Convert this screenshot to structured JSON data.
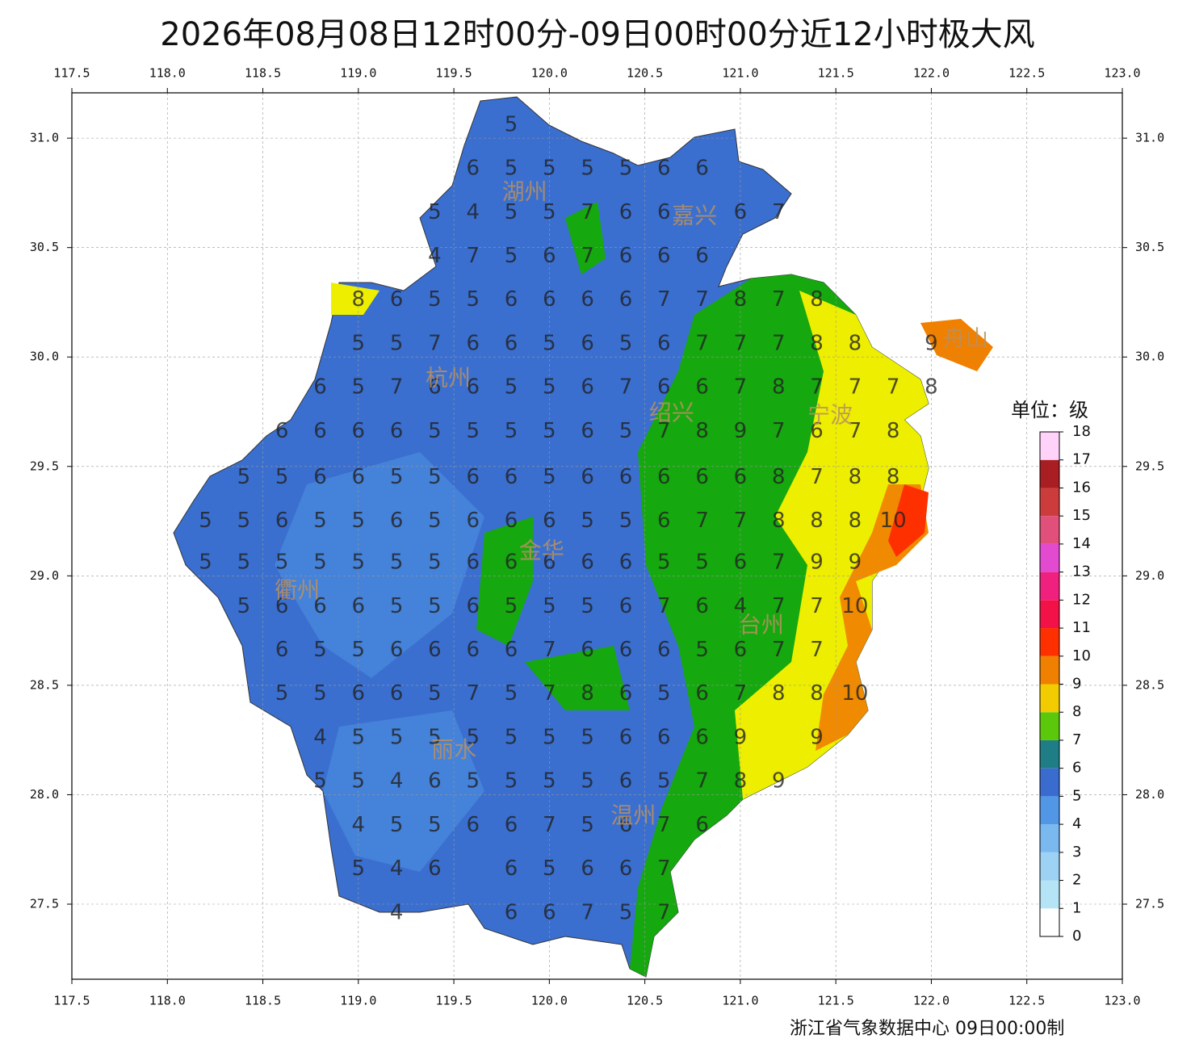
{
  "title": "2026年08月08日12时00分-09日00时00分近12小时极大风",
  "footer": "浙江省气象数据中心 09日00:00制",
  "map": {
    "xlim": [
      117.5,
      123.0
    ],
    "ylim": [
      27.157,
      31.207
    ],
    "grid": true,
    "xticks": [
      {
        "value": 117.5,
        "label": "117.5"
      },
      {
        "value": 118,
        "label": "118.0"
      },
      {
        "value": 118.5,
        "label": "118.5"
      },
      {
        "value": 119,
        "label": "119.0"
      },
      {
        "value": 119.5,
        "label": "119.5"
      },
      {
        "value": 120,
        "label": "120.0"
      },
      {
        "value": 120.5,
        "label": "120.5"
      },
      {
        "value": 121,
        "label": "121.0"
      },
      {
        "value": 121.5,
        "label": "121.5"
      },
      {
        "value": 122,
        "label": "122.0"
      },
      {
        "value": 122.5,
        "label": "122.5"
      },
      {
        "value": 123,
        "label": "123.0"
      }
    ],
    "yticks": [
      {
        "value": 27.5,
        "label": "27.5"
      },
      {
        "value": 28,
        "label": "28.0"
      },
      {
        "value": 28.5,
        "label": "28.5"
      },
      {
        "value": 29,
        "label": "29.0"
      },
      {
        "value": 29.5,
        "label": "29.5"
      },
      {
        "value": 30,
        "label": "30.0"
      },
      {
        "value": 30.5,
        "label": "30.5"
      },
      {
        "value": 31,
        "label": "31.0"
      }
    ]
  },
  "cities": [
    {
      "name": "湖州",
      "lon": 119.87,
      "lat": 30.75
    },
    {
      "name": "嘉兴",
      "lon": 120.76,
      "lat": 30.64
    },
    {
      "name": "杭州",
      "lon": 119.47,
      "lat": 29.9
    },
    {
      "name": "绍兴",
      "lon": 120.64,
      "lat": 29.74
    },
    {
      "name": "宁波",
      "lon": 121.47,
      "lat": 29.73
    },
    {
      "name": "舟山",
      "lon": 122.18,
      "lat": 30.08
    },
    {
      "name": "金华",
      "lon": 119.96,
      "lat": 29.11
    },
    {
      "name": "衢州",
      "lon": 118.68,
      "lat": 28.93
    },
    {
      "name": "台州",
      "lon": 121.11,
      "lat": 28.77
    },
    {
      "name": "丽水",
      "lon": 119.5,
      "lat": 28.2
    },
    {
      "name": "温州",
      "lon": 120.44,
      "lat": 27.9
    }
  ],
  "station_rows": [
    {
      "lat": 31.06,
      "lon": [
        119.8
      ],
      "values": [
        5
      ]
    },
    {
      "lat": 30.86,
      "lon": [
        119.6,
        119.8,
        120.0,
        120.2,
        120.4,
        120.6,
        120.8
      ],
      "values": [
        6,
        5,
        5,
        5,
        5,
        6,
        6
      ]
    },
    {
      "lat": 30.66,
      "lon": [
        119.4,
        119.6,
        119.8,
        120.0,
        120.2,
        120.4,
        120.6,
        121.0,
        121.2
      ],
      "values": [
        5,
        4,
        5,
        5,
        7,
        6,
        6,
        6,
        7
      ]
    },
    {
      "lat": 30.46,
      "lon": [
        119.4,
        119.6,
        119.8,
        120.0,
        120.2,
        120.4,
        120.6,
        120.8
      ],
      "values": [
        4,
        7,
        5,
        6,
        7,
        6,
        6,
        6
      ]
    },
    {
      "lat": 30.26,
      "lon": [
        119.0,
        119.2,
        119.4,
        119.6,
        119.8,
        120.0,
        120.2,
        120.4,
        120.6,
        120.8,
        121.0,
        121.2,
        121.4
      ],
      "values": [
        8,
        6,
        5,
        5,
        6,
        6,
        6,
        6,
        7,
        7,
        8,
        7,
        8
      ]
    },
    {
      "lat": 30.06,
      "lon": [
        119.0,
        119.2,
        119.4,
        119.6,
        119.8,
        120.0,
        120.2,
        120.4,
        120.6,
        120.8,
        121.0,
        121.2,
        121.4,
        121.6,
        122.0
      ],
      "values": [
        5,
        5,
        7,
        6,
        6,
        5,
        6,
        5,
        6,
        7,
        7,
        7,
        8,
        8,
        9
      ]
    },
    {
      "lat": 29.86,
      "lon": [
        118.8,
        119.0,
        119.2,
        119.4,
        119.6,
        119.8,
        120.0,
        120.2,
        120.4,
        120.6,
        120.8,
        121.0,
        121.2,
        121.4,
        121.6,
        121.8,
        122.0
      ],
      "values": [
        6,
        5,
        7,
        6,
        6,
        5,
        5,
        6,
        7,
        6,
        6,
        7,
        8,
        7,
        7,
        7,
        8
      ]
    },
    {
      "lat": 29.66,
      "lon": [
        118.6,
        118.8,
        119.0,
        119.2,
        119.4,
        119.6,
        119.8,
        120.0,
        120.2,
        120.4,
        120.6,
        120.8,
        121.0,
        121.2,
        121.4,
        121.6,
        121.8
      ],
      "values": [
        6,
        6,
        6,
        6,
        5,
        5,
        5,
        5,
        6,
        5,
        7,
        8,
        9,
        7,
        6,
        7,
        8
      ]
    },
    {
      "lat": 29.45,
      "lon": [
        118.4,
        118.6,
        118.8,
        119.0,
        119.2,
        119.4,
        119.6,
        119.8,
        120.0,
        120.2,
        120.4,
        120.6,
        120.8,
        121.0,
        121.2,
        121.4,
        121.6,
        121.8
      ],
      "values": [
        5,
        5,
        6,
        6,
        5,
        5,
        6,
        6,
        5,
        6,
        6,
        6,
        6,
        6,
        8,
        7,
        8,
        8
      ]
    },
    {
      "lat": 29.25,
      "lon": [
        118.2,
        118.4,
        118.6,
        118.8,
        119.0,
        119.2,
        119.4,
        119.6,
        119.8,
        120.0,
        120.2,
        120.4,
        120.6,
        120.8,
        121.0,
        121.2,
        121.4,
        121.6,
        121.8
      ],
      "values": [
        5,
        5,
        6,
        5,
        5,
        6,
        5,
        6,
        6,
        6,
        5,
        5,
        6,
        7,
        7,
        8,
        8,
        8,
        10
      ]
    },
    {
      "lat": 29.06,
      "lon": [
        118.2,
        118.4,
        118.6,
        118.8,
        119.0,
        119.2,
        119.4,
        119.6,
        119.8,
        120.0,
        120.2,
        120.4,
        120.6,
        120.8,
        121.0,
        121.2,
        121.4,
        121.6
      ],
      "values": [
        5,
        5,
        5,
        5,
        5,
        5,
        5,
        6,
        6,
        6,
        6,
        6,
        5,
        5,
        6,
        7,
        9,
        9
      ]
    },
    {
      "lat": 28.86,
      "lon": [
        118.4,
        118.6,
        118.8,
        119.0,
        119.2,
        119.4,
        119.6,
        119.8,
        120.0,
        120.2,
        120.4,
        120.6,
        120.8,
        121.0,
        121.2,
        121.4,
        121.6
      ],
      "values": [
        5,
        6,
        6,
        6,
        5,
        5,
        6,
        5,
        5,
        5,
        6,
        7,
        6,
        4,
        7,
        7,
        10
      ]
    },
    {
      "lat": 28.66,
      "lon": [
        118.6,
        118.8,
        119.0,
        119.2,
        119.4,
        119.6,
        119.8,
        120.0,
        120.2,
        120.4,
        120.6,
        120.8,
        121.0,
        121.2,
        121.4
      ],
      "values": [
        6,
        5,
        5,
        6,
        6,
        6,
        6,
        7,
        6,
        6,
        6,
        5,
        6,
        7,
        7
      ]
    },
    {
      "lat": 28.46,
      "lon": [
        118.6,
        118.8,
        119.0,
        119.2,
        119.4,
        119.6,
        119.8,
        120.0,
        120.2,
        120.4,
        120.6,
        120.8,
        121.0,
        121.2,
        121.4,
        121.6
      ],
      "values": [
        5,
        5,
        6,
        6,
        5,
        7,
        5,
        7,
        8,
        6,
        5,
        6,
        7,
        8,
        8,
        10
      ]
    },
    {
      "lat": 28.26,
      "lon": [
        118.8,
        119.0,
        119.2,
        119.4,
        119.6,
        119.8,
        120.0,
        120.2,
        120.4,
        120.6,
        120.8,
        121.0,
        121.4
      ],
      "values": [
        4,
        5,
        5,
        5,
        5,
        5,
        5,
        5,
        6,
        6,
        6,
        9,
        9
      ]
    },
    {
      "lat": 28.06,
      "lon": [
        118.8,
        119.0,
        119.2,
        119.4,
        119.6,
        119.8,
        120.0,
        120.2,
        120.4,
        120.6,
        120.8,
        121.0,
        121.2
      ],
      "values": [
        5,
        5,
        4,
        6,
        5,
        5,
        5,
        5,
        6,
        5,
        7,
        8,
        9
      ]
    },
    {
      "lat": 27.86,
      "lon": [
        119.0,
        119.2,
        119.4,
        119.6,
        119.8,
        120.0,
        120.2,
        120.4,
        120.6,
        120.8
      ],
      "values": [
        4,
        5,
        5,
        6,
        6,
        7,
        5,
        6,
        7,
        6
      ]
    },
    {
      "lat": 27.66,
      "lon": [
        119.0,
        119.2,
        119.4,
        119.8,
        120.0,
        120.2,
        120.4,
        120.6
      ],
      "values": [
        5,
        4,
        6,
        6,
        5,
        6,
        6,
        7
      ]
    },
    {
      "lat": 27.46,
      "lon": [
        119.2,
        119.8,
        120.0,
        120.2,
        120.4,
        120.6
      ],
      "values": [
        4,
        6,
        6,
        7,
        5,
        7
      ]
    }
  ],
  "legend": {
    "title": "单位：级",
    "levels": [
      0,
      1,
      2,
      3,
      4,
      5,
      6,
      7,
      8,
      9,
      10,
      11,
      12,
      13,
      14,
      15,
      16,
      17,
      18
    ],
    "colors": [
      "#ffffff",
      "#b4e4f6",
      "#9dd2f4",
      "#7ab8f0",
      "#5197e6",
      "#3a6cd0",
      "#1f7d86",
      "#5cc80c",
      "#f2cc00",
      "#f08000",
      "#ff3000",
      "#f21248",
      "#f0207e",
      "#e24ad0",
      "#e0507a",
      "#cc3c3c",
      "#a81e22",
      "#ffd2fa"
    ]
  }
}
